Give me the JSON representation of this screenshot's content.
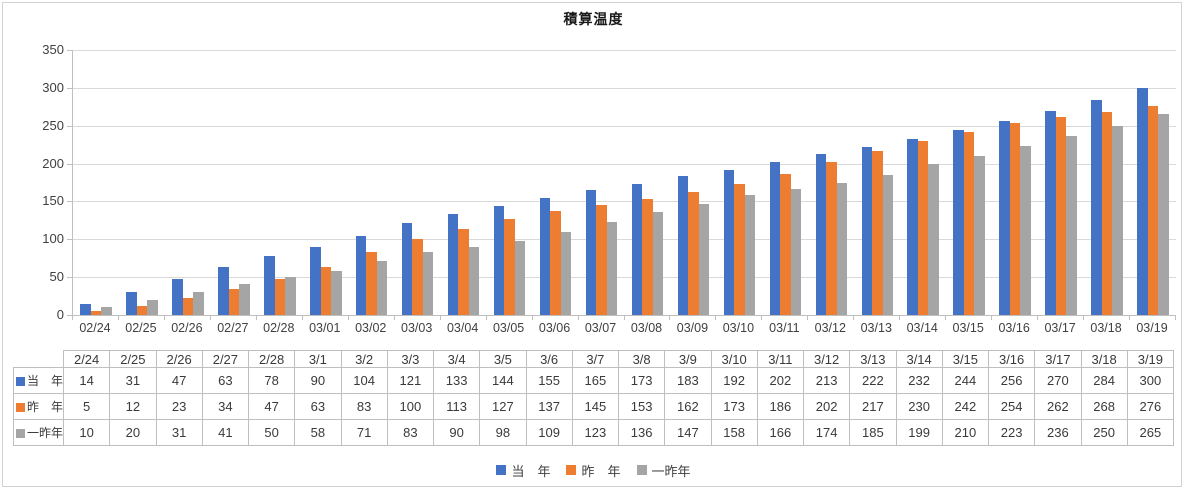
{
  "window": {
    "background": "#FFFFFF",
    "frame_border_color": "#D2D2D2"
  },
  "chart_data": {
    "type": "bar",
    "title": "積算温度",
    "xlabel": "",
    "ylabel": "",
    "ylim": [
      0,
      350
    ],
    "ytick_step": 50,
    "ytick_labels": [
      "0",
      "50",
      "100",
      "150",
      "200",
      "250",
      "300",
      "350"
    ],
    "grid": true,
    "legend_position": "bottom",
    "categories": [
      "02/24",
      "02/25",
      "02/26",
      "02/27",
      "02/28",
      "03/01",
      "03/02",
      "03/03",
      "03/04",
      "03/05",
      "03/06",
      "03/07",
      "03/08",
      "03/09",
      "03/10",
      "03/11",
      "03/12",
      "03/13",
      "03/14",
      "03/15",
      "03/16",
      "03/17",
      "03/18",
      "03/19"
    ],
    "series": [
      {
        "name": "当　年",
        "color": "#4472C4",
        "values": [
          14,
          31,
          47,
          63,
          78,
          90,
          104,
          121,
          133,
          144,
          155,
          165,
          173,
          183,
          192,
          202,
          213,
          222,
          232,
          244,
          256,
          270,
          284,
          300
        ]
      },
      {
        "name": "昨　年",
        "color": "#ED7D31",
        "values": [
          5,
          12,
          23,
          34,
          47,
          63,
          83,
          100,
          113,
          127,
          137,
          145,
          153,
          162,
          173,
          186,
          202,
          217,
          230,
          242,
          254,
          262,
          268,
          276
        ]
      },
      {
        "name": "一昨年",
        "color": "#A5A5A5",
        "values": [
          10,
          20,
          31,
          41,
          50,
          58,
          71,
          83,
          90,
          98,
          109,
          123,
          136,
          147,
          158,
          166,
          174,
          185,
          199,
          210,
          223,
          236,
          250,
          265
        ]
      }
    ],
    "data_table": {
      "show": true,
      "header": [
        "2/24",
        "2/25",
        "2/26",
        "2/27",
        "2/28",
        "3/1",
        "3/2",
        "3/3",
        "3/4",
        "3/5",
        "3/6",
        "3/7",
        "3/8",
        "3/9",
        "3/10",
        "3/11",
        "3/12",
        "3/13",
        "3/14",
        "3/15",
        "3/16",
        "3/17",
        "3/18",
        "3/19"
      ]
    }
  },
  "styles": {
    "gridline_color": "#D9D9D9",
    "axis_line_color": "#BFBFBF",
    "table_border_color": "#BFBFBF",
    "text_color": "#404040",
    "title_color": "#1A1A1A"
  }
}
